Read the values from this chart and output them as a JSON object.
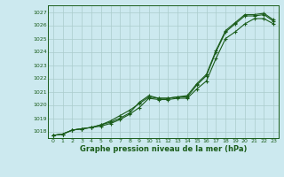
{
  "x": [
    0,
    1,
    2,
    3,
    4,
    5,
    6,
    7,
    8,
    9,
    10,
    11,
    12,
    13,
    14,
    15,
    16,
    17,
    18,
    19,
    20,
    21,
    22,
    23
  ],
  "line1": [
    1017.7,
    1017.8,
    1018.1,
    1018.2,
    1018.3,
    1018.5,
    1018.7,
    1019.0,
    1019.4,
    1020.2,
    1020.7,
    1020.5,
    1020.5,
    1020.6,
    1020.7,
    1021.6,
    1022.3,
    1024.1,
    1025.6,
    1026.2,
    1026.8,
    1026.8,
    1026.9,
    1026.4
  ],
  "line2": [
    1017.7,
    1017.8,
    1018.1,
    1018.2,
    1018.3,
    1018.5,
    1018.8,
    1019.2,
    1019.6,
    1020.1,
    1020.6,
    1020.5,
    1020.5,
    1020.6,
    1020.6,
    1021.5,
    1022.2,
    1024.0,
    1025.5,
    1026.1,
    1026.7,
    1026.7,
    1026.8,
    1026.3
  ],
  "line3": [
    1017.7,
    1017.8,
    1018.1,
    1018.2,
    1018.3,
    1018.4,
    1018.6,
    1018.9,
    1019.3,
    1019.8,
    1020.5,
    1020.4,
    1020.4,
    1020.5,
    1020.5,
    1021.2,
    1021.8,
    1023.5,
    1025.0,
    1025.5,
    1026.1,
    1026.5,
    1026.5,
    1026.1
  ],
  "bg_color": "#cce9ef",
  "grid_color": "#aacccc",
  "line_color": "#1a5c1a",
  "xlabel": "Graphe pression niveau de la mer (hPa)",
  "ylim": [
    1017.5,
    1027.5
  ],
  "xlim": [
    -0.5,
    23.5
  ],
  "yticks": [
    1018,
    1019,
    1020,
    1021,
    1022,
    1023,
    1024,
    1025,
    1026,
    1027
  ],
  "xticks": [
    0,
    1,
    2,
    3,
    4,
    5,
    6,
    7,
    8,
    9,
    10,
    11,
    12,
    13,
    14,
    15,
    16,
    17,
    18,
    19,
    20,
    21,
    22,
    23
  ]
}
